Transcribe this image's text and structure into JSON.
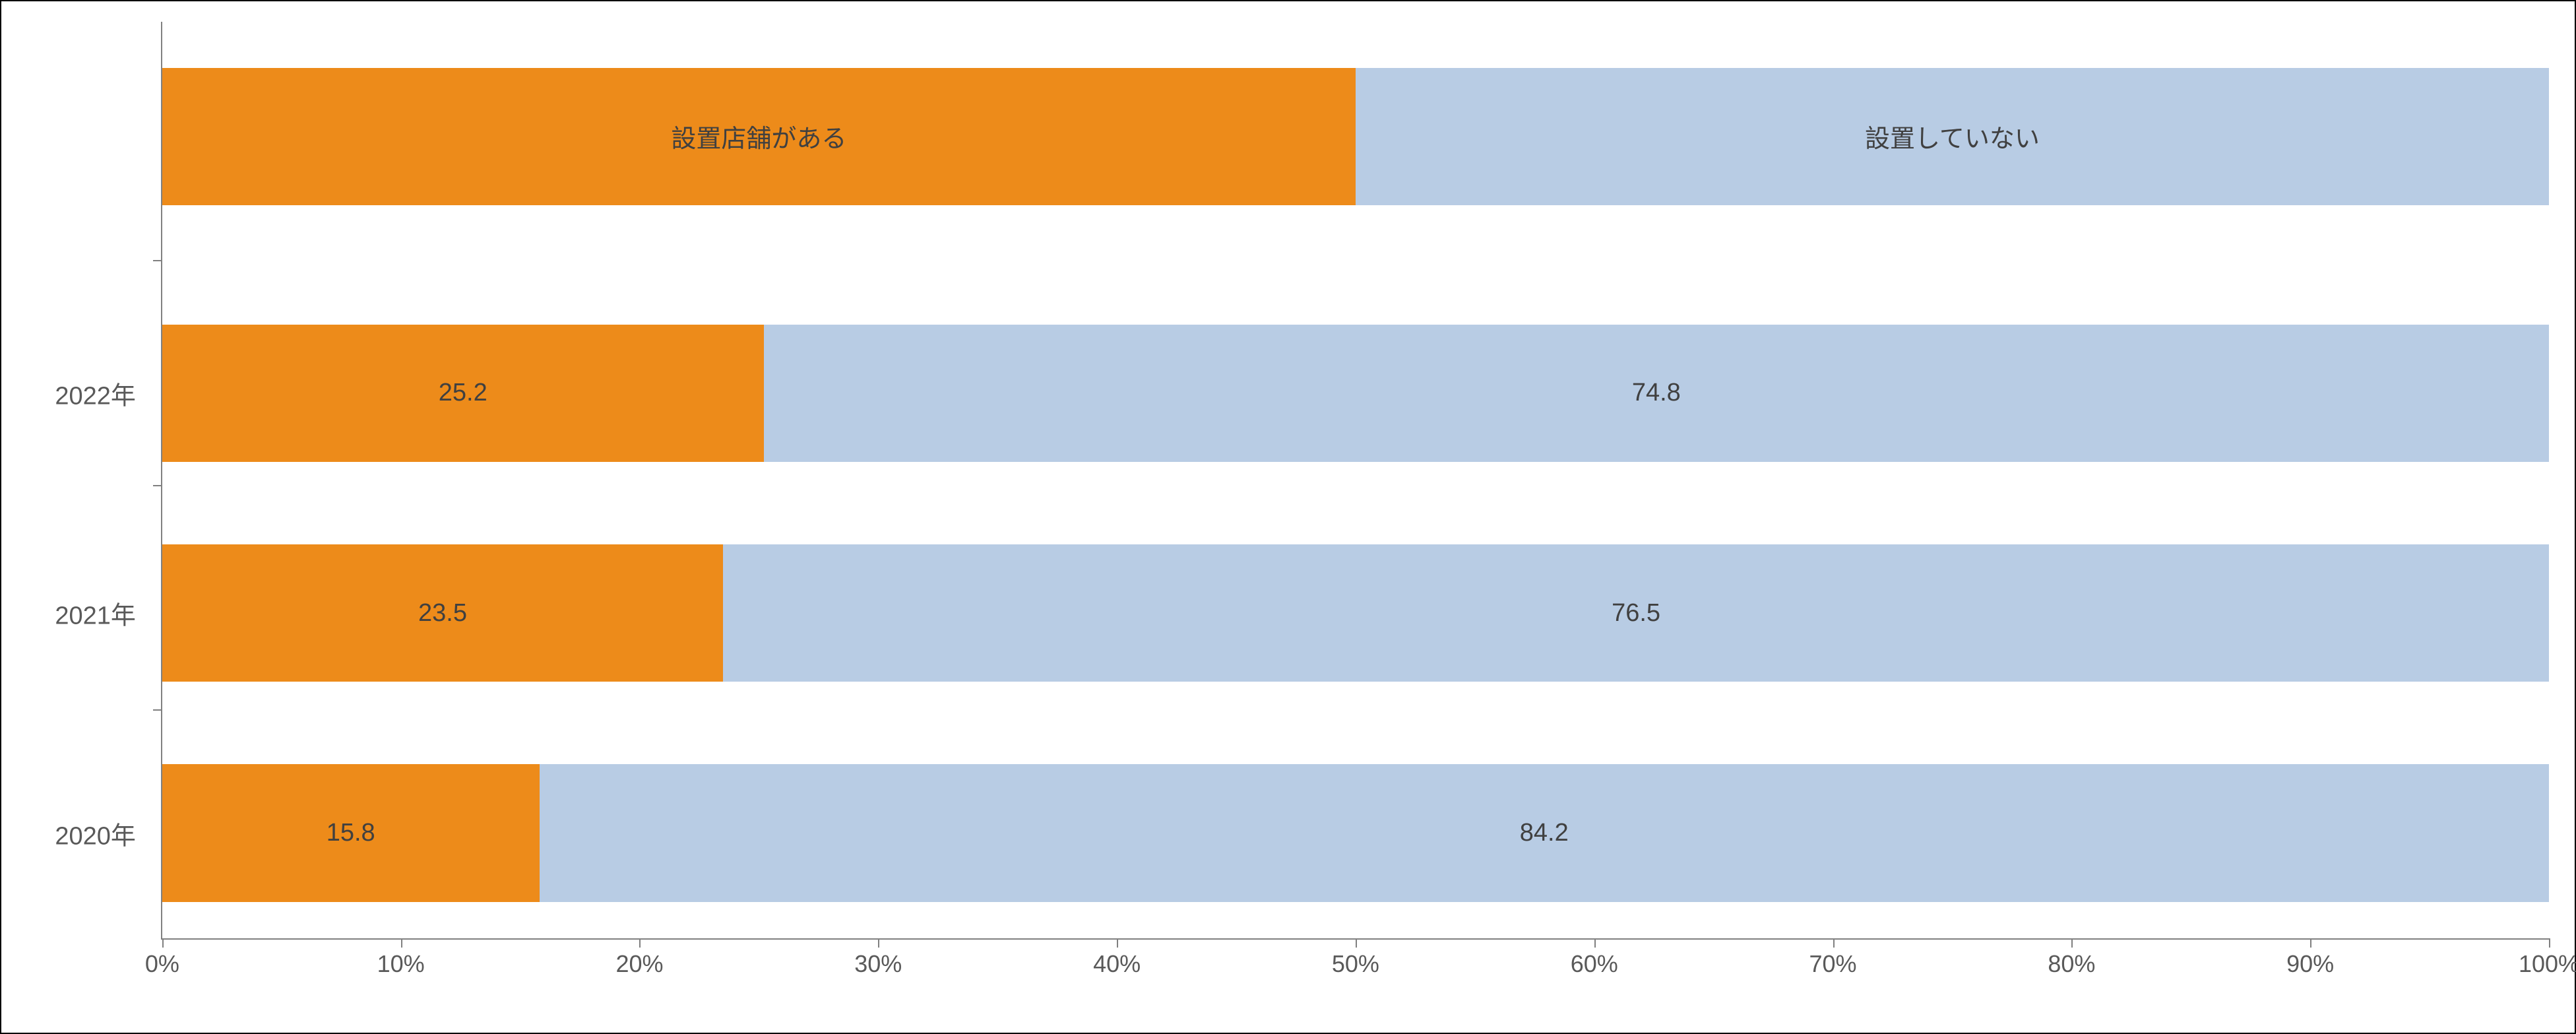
{
  "chart": {
    "type": "stacked-bar-horizontal",
    "background_color": "#ffffff",
    "border_color": "#000000",
    "axis_color": "#808080",
    "text_color": "#595959",
    "value_text_color": "#404040",
    "label_fontsize": 38,
    "axis_fontsize": 36,
    "xlim": [
      0,
      100
    ],
    "xtick_step": 10,
    "xtick_labels": [
      "0%",
      "10%",
      "20%",
      "30%",
      "40%",
      "50%",
      "60%",
      "70%",
      "80%",
      "90%",
      "100%"
    ],
    "series": [
      {
        "name": "設置店舗がある",
        "color": "#ed8b1a"
      },
      {
        "name": "設置していない",
        "color": "#b8cce4"
      }
    ],
    "legend_bar": {
      "values": [
        50,
        50
      ],
      "labels": [
        "設置店舗がある",
        "設置していない"
      ]
    },
    "rows": [
      {
        "label": "2022年",
        "values": [
          25.2,
          74.8
        ],
        "value_labels": [
          "25.2",
          "74.8"
        ]
      },
      {
        "label": "2021年",
        "values": [
          23.5,
          76.5
        ],
        "value_labels": [
          "23.5",
          "76.5"
        ]
      },
      {
        "label": "2020年",
        "values": [
          15.8,
          84.2
        ],
        "value_labels": [
          "15.8",
          "84.2"
        ]
      }
    ],
    "bar_height_pct": 15,
    "row_positions_pct": [
      5,
      33,
      57,
      81
    ],
    "ytick_positions_pct": [
      26,
      50.5,
      75
    ]
  }
}
